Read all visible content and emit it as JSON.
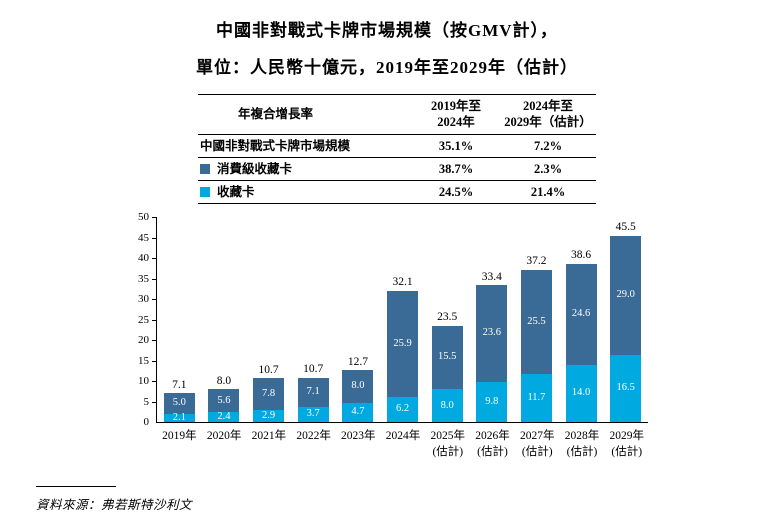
{
  "title": {
    "line1": "中國非對戰式卡牌市場規模（按GMV計），",
    "line2": "單位：人民幣十億元，2019年至2029年（估計）"
  },
  "table": {
    "header": {
      "col1": "年複合增長率",
      "col2_line1": "2019年至",
      "col2_line2": "2024年",
      "col3_line1": "2024年至",
      "col3_line2": "2029年（估計）"
    },
    "rows": [
      {
        "label": "中國非對戰式卡牌市場規模",
        "cagr_2019_2024": "35.1%",
        "cagr_2024_2029": "7.2%"
      },
      {
        "label": "消費級收藏卡",
        "cagr_2019_2024": "38.7%",
        "cagr_2024_2029": "2.3%"
      },
      {
        "label": "收藏卡",
        "cagr_2019_2024": "24.5%",
        "cagr_2024_2029": "21.4%"
      }
    ]
  },
  "colors": {
    "consumer_grade": "#3a6a96",
    "collectible": "#00a9e0"
  },
  "chart_data": {
    "type": "bar",
    "stacked": true,
    "title": "中國非對戰式卡牌市場規模（按GMV計）",
    "ylabel": "人民幣十億元",
    "ylim": [
      0,
      50
    ],
    "yticks": [
      0,
      5,
      10,
      15,
      20,
      25,
      30,
      35,
      40,
      45,
      50
    ],
    "categories": [
      "2019年",
      "2020年",
      "2021年",
      "2022年",
      "2023年",
      "2024年",
      "2025年",
      "2026年",
      "2027年",
      "2028年",
      "2029年"
    ],
    "category_sublabels": [
      "",
      "",
      "",
      "",
      "",
      "",
      "(估計)",
      "(估計)",
      "(估計)",
      "(估計)",
      "(估計)"
    ],
    "series": [
      {
        "name": "收藏卡",
        "color": "#00a9e0",
        "values": [
          2.1,
          2.4,
          2.9,
          3.7,
          4.7,
          6.2,
          8.0,
          9.8,
          11.7,
          14.0,
          16.5
        ]
      },
      {
        "name": "消費級收藏卡",
        "color": "#3a6a96",
        "values": [
          5.0,
          5.6,
          7.8,
          7.1,
          8.0,
          25.9,
          15.5,
          23.6,
          25.5,
          24.6,
          29.0
        ]
      }
    ],
    "totals": [
      7.1,
      8.0,
      10.7,
      10.7,
      12.7,
      32.1,
      23.5,
      33.4,
      37.2,
      38.6,
      45.5
    ],
    "legend_position": "table"
  },
  "source": "資料來源：弗若斯特沙利文"
}
